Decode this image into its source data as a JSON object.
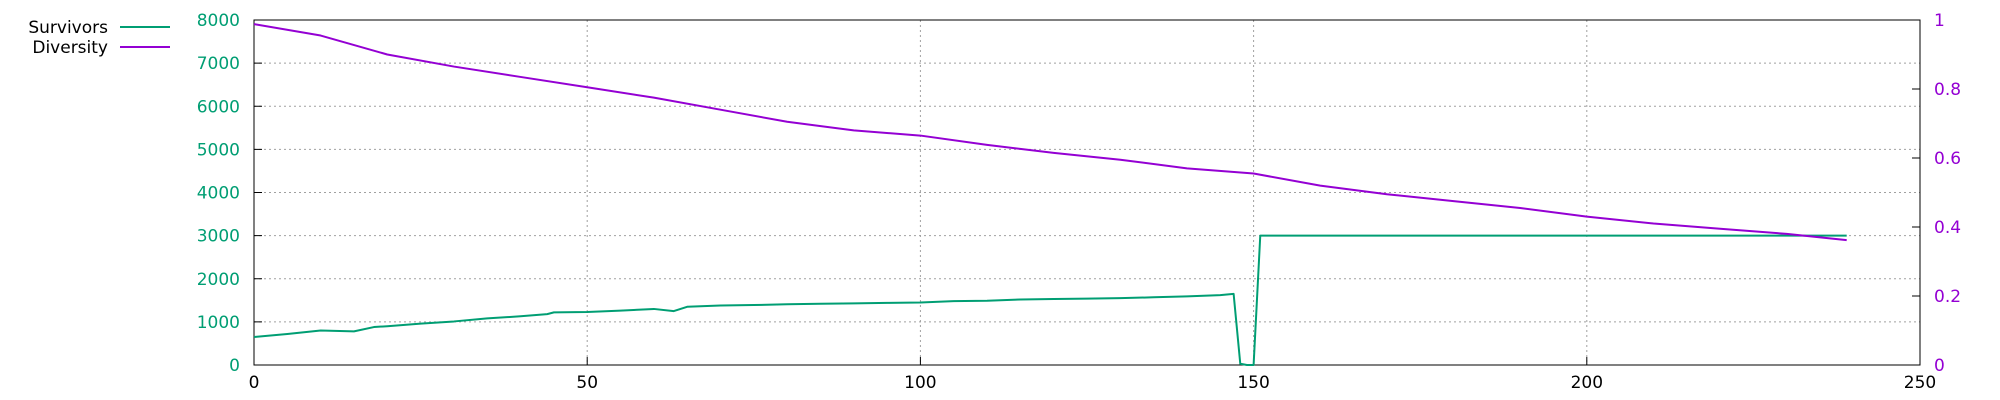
{
  "chart_data": {
    "type": "line",
    "title": "",
    "xlabel": "",
    "ylabel": "",
    "y2label": "",
    "xlim": [
      0,
      250
    ],
    "ylim": [
      0,
      8000
    ],
    "y2lim": [
      0,
      1
    ],
    "grid": true,
    "legend_position": "top-left",
    "x_ticks": [
      "0",
      "50",
      "100",
      "150",
      "200",
      "250"
    ],
    "y_ticks": [
      "0",
      "1000",
      "2000",
      "3000",
      "4000",
      "5000",
      "6000",
      "7000",
      "8000"
    ],
    "y2_ticks": [
      "0",
      "0.2",
      "0.4",
      "0.6",
      "0.8",
      "1"
    ],
    "colors": {
      "left_axis": "#009e73",
      "right_axis": "#9400d3"
    },
    "series": [
      {
        "name": "Survivors",
        "axis": "y",
        "color": "#009e73",
        "x": [
          0,
          5,
          10,
          15,
          18,
          20,
          25,
          30,
          35,
          40,
          44,
          45,
          50,
          55,
          60,
          63,
          65,
          70,
          75,
          80,
          85,
          90,
          95,
          100,
          105,
          110,
          115,
          120,
          125,
          130,
          135,
          140,
          145,
          147,
          148,
          149,
          150,
          151,
          200,
          239
        ],
        "y": [
          650,
          720,
          800,
          780,
          880,
          900,
          960,
          1010,
          1080,
          1130,
          1180,
          1220,
          1230,
          1260,
          1300,
          1250,
          1350,
          1380,
          1390,
          1410,
          1420,
          1430,
          1440,
          1450,
          1480,
          1490,
          1520,
          1530,
          1540,
          1550,
          1570,
          1590,
          1620,
          1650,
          30,
          0,
          0,
          3000,
          3000,
          3000
        ]
      },
      {
        "name": "Diversity",
        "axis": "y2",
        "color": "#9400d3",
        "x": [
          0,
          10,
          20,
          30,
          40,
          50,
          60,
          70,
          80,
          90,
          100,
          110,
          120,
          130,
          140,
          150,
          160,
          170,
          180,
          190,
          200,
          210,
          220,
          230,
          239
        ],
        "y": [
          0.988,
          0.955,
          0.9,
          0.865,
          0.835,
          0.805,
          0.775,
          0.74,
          0.705,
          0.68,
          0.665,
          0.638,
          0.615,
          0.595,
          0.57,
          0.555,
          0.52,
          0.495,
          0.475,
          0.455,
          0.43,
          0.41,
          0.395,
          0.38,
          0.362
        ]
      }
    ]
  }
}
